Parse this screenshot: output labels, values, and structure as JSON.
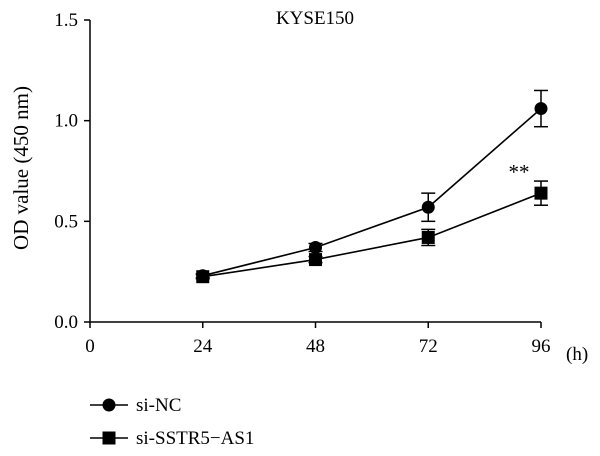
{
  "chart_data": {
    "type": "line",
    "title": "KYSE150",
    "xlabel": "",
    "x_unit": "(h)",
    "ylabel": "OD value (450 nm)",
    "x": [
      24,
      48,
      72,
      96
    ],
    "xlim": [
      0,
      96
    ],
    "ylim": [
      0.0,
      1.5
    ],
    "x_ticks": [
      "0",
      "24",
      "48",
      "72",
      "96"
    ],
    "y_ticks": [
      "0.0",
      "0.5",
      "1.0",
      "1.5"
    ],
    "grid": false,
    "legend_position": "bottom-left",
    "series": [
      {
        "name": "si-NC",
        "marker": "circle",
        "values": [
          0.23,
          0.37,
          0.57,
          1.06
        ],
        "error": [
          0.01,
          0.02,
          0.07,
          0.09
        ]
      },
      {
        "name": "si-SSTR5−AS1",
        "marker": "square",
        "values": [
          0.225,
          0.31,
          0.42,
          0.64
        ],
        "error": [
          0.01,
          0.015,
          0.04,
          0.06
        ]
      }
    ],
    "annotations": [
      {
        "text": "**",
        "x": 96,
        "y": 0.64,
        "series": 1
      }
    ]
  }
}
